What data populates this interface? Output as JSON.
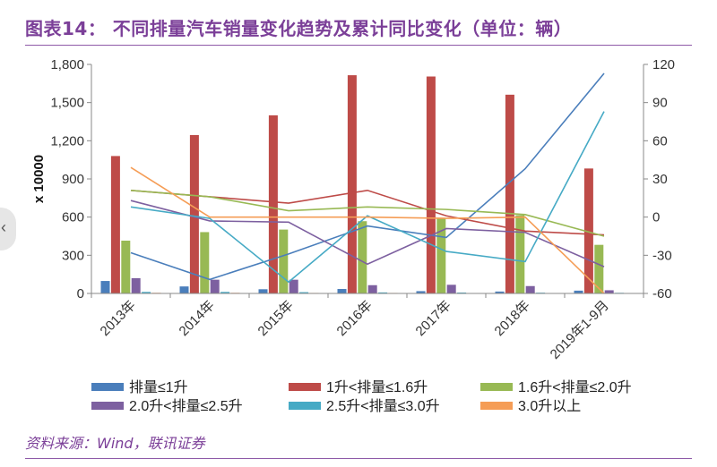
{
  "title": "图表14：  不同排量汽车销量变化趋势及累计同比变化（单位：辆）",
  "source": "资料来源：Wind，联讯证券",
  "colors": {
    "title": "#7b3f98",
    "s1": "#4a7ebb",
    "s2": "#be4b48",
    "s3": "#98b954",
    "s4": "#7d60a0",
    "s5": "#46aac5",
    "s6": "#f59d56"
  },
  "chart_data": {
    "type": "bar",
    "categories": [
      "2013年",
      "2014年",
      "2015年",
      "2016年",
      "2017年",
      "2018年",
      "2019年1-9月"
    ],
    "ylabel": "x 10000",
    "ylim": [
      0,
      1800
    ],
    "yticks": [
      "0",
      "300",
      "600",
      "900",
      "1,200",
      "1,500",
      "1,800"
    ],
    "ylim_right": [
      -60,
      120
    ],
    "yticks_right": [
      "-60",
      "-30",
      "0",
      "30",
      "60",
      "90",
      "120"
    ],
    "series": [
      {
        "name": "排量≤1升",
        "values": [
          98,
          55,
          33,
          35,
          18,
          15,
          22
        ]
      },
      {
        "name": "1升<排量≤1.6升",
        "values": [
          1080,
          1245,
          1400,
          1715,
          1705,
          1562,
          982
        ]
      },
      {
        "name": "1.6升<排量≤2.0升",
        "values": [
          415,
          482,
          502,
          568,
          595,
          615,
          382
        ]
      },
      {
        "name": "2.0升<排量≤2.5升",
        "values": [
          120,
          108,
          108,
          65,
          68,
          58,
          25
        ]
      },
      {
        "name": "2.5升<排量≤3.0升",
        "values": [
          12,
          12,
          10,
          8,
          7,
          6,
          5
        ]
      },
      {
        "name": "3.0升以上",
        "values": [
          5,
          5,
          4,
          4,
          3,
          3,
          2
        ]
      }
    ],
    "lines": [
      {
        "name": "排量≤1升 累计同比",
        "values": [
          -28,
          -49,
          -29,
          -7,
          -16,
          38,
          113
        ]
      },
      {
        "name": "1升<排量≤1.6升 累计同比",
        "values": [
          21,
          16,
          11,
          21,
          1,
          -11,
          -14
        ]
      },
      {
        "name": "1.6升<排量≤2.0升 累计同比",
        "values": [
          21,
          16,
          5,
          8,
          6,
          2,
          -15
        ]
      },
      {
        "name": "2.0升<排量≤2.5升 累计同比",
        "values": [
          13,
          -3,
          -4,
          -37,
          -9,
          -12,
          -39
        ]
      },
      {
        "name": "2.5升<排量≤3.0升 累计同比",
        "values": [
          8,
          -1,
          -51,
          1,
          -27,
          -35,
          83
        ]
      },
      {
        "name": "3.0升以上 累计同比",
        "values": [
          39,
          0,
          0,
          0,
          -1,
          0,
          -60
        ]
      }
    ]
  }
}
